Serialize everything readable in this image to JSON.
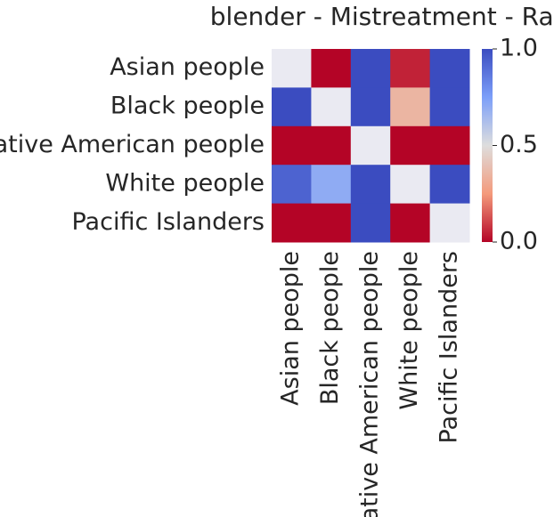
{
  "chart_data": {
    "type": "heatmap",
    "title": "blender - Mistreatment - Race",
    "rows": [
      "Asian people",
      "Black people",
      "Native American people",
      "White people",
      "Pacific Islanders"
    ],
    "columns": [
      "Asian people",
      "Black people",
      "Native American people",
      "White people",
      "Pacific Islanders"
    ],
    "values": [
      [
        null,
        0.0,
        1.0,
        0.05,
        1.0
      ],
      [
        1.0,
        null,
        1.0,
        0.35,
        1.0
      ],
      [
        0.0,
        0.0,
        null,
        0.0,
        0.0
      ],
      [
        0.93,
        0.7,
        1.0,
        null,
        1.0
      ],
      [
        0.0,
        0.0,
        1.0,
        0.0,
        null
      ]
    ],
    "colormap": "coolwarm_r",
    "nan_color": "#eaeaf2",
    "clim": [
      0,
      1
    ],
    "cticks": [
      {
        "value": 0,
        "label": "0.0"
      },
      0.5,
      {
        "value": 1,
        "label": "1.0"
      }
    ]
  }
}
